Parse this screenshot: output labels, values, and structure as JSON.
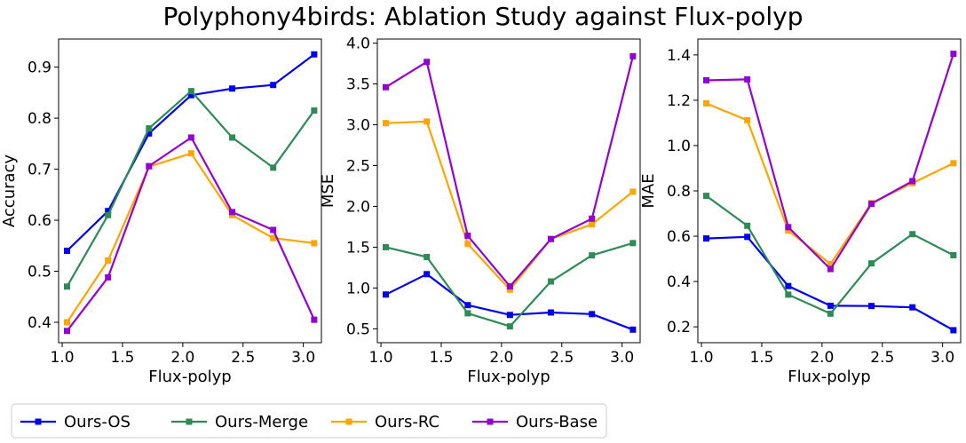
{
  "title": "Polyphony4birds: Ablation Study against Flux-polyp",
  "colors": {
    "Ours-OS": "#0000ee",
    "Ours-Merge": "#2e8b57",
    "Ours-RC": "#ffa500",
    "Ours-Base": "#9400d3"
  },
  "legend": {
    "placement": "bottom",
    "entries": [
      "Ours-OS",
      "Ours-Merge",
      "Ours-RC",
      "Ours-Base"
    ]
  },
  "chart_data": [
    {
      "type": "line",
      "xlabel": "Flux-polyp",
      "ylabel": "Accuracy",
      "xlim": [
        0.97,
        3.15
      ],
      "ylim": [
        0.36,
        0.955
      ],
      "xticks": [
        "1.0",
        "1.5",
        "2.0",
        "2.5",
        "3.0"
      ],
      "yticks": [
        "0.4",
        "0.5",
        "0.6",
        "0.7",
        "0.8",
        "0.9"
      ],
      "x": [
        1.04,
        1.38,
        1.72,
        2.07,
        2.41,
        2.75,
        3.09
      ],
      "series": [
        {
          "name": "Ours-OS",
          "values": [
            0.54,
            0.618,
            0.77,
            0.845,
            0.858,
            0.865,
            0.925
          ]
        },
        {
          "name": "Ours-Merge",
          "values": [
            0.47,
            0.61,
            0.78,
            0.853,
            0.762,
            0.703,
            0.815
          ]
        },
        {
          "name": "Ours-RC",
          "values": [
            0.4,
            0.521,
            0.705,
            0.731,
            0.61,
            0.565,
            0.555
          ]
        },
        {
          "name": "Ours-Base",
          "values": [
            0.383,
            0.488,
            0.706,
            0.762,
            0.616,
            0.581,
            0.405
          ]
        }
      ]
    },
    {
      "type": "line",
      "xlabel": "Flux-polyp",
      "ylabel": "MSE",
      "xlim": [
        0.97,
        3.15
      ],
      "ylim": [
        0.33,
        4.05
      ],
      "xticks": [
        "1.0",
        "1.5",
        "2.0",
        "2.5",
        "3.0"
      ],
      "yticks": [
        "0.5",
        "1.0",
        "1.5",
        "2.0",
        "2.5",
        "3.0",
        "3.5",
        "4.0"
      ],
      "x": [
        1.04,
        1.38,
        1.72,
        2.07,
        2.41,
        2.75,
        3.09
      ],
      "series": [
        {
          "name": "Ours-OS",
          "values": [
            0.92,
            1.17,
            0.79,
            0.67,
            0.7,
            0.68,
            0.49
          ]
        },
        {
          "name": "Ours-Merge",
          "values": [
            1.5,
            1.38,
            0.69,
            0.53,
            1.08,
            1.4,
            1.55
          ]
        },
        {
          "name": "Ours-RC",
          "values": [
            3.02,
            3.04,
            1.54,
            0.98,
            1.6,
            1.78,
            2.18
          ]
        },
        {
          "name": "Ours-Base",
          "values": [
            3.46,
            3.77,
            1.64,
            1.02,
            1.6,
            1.85,
            3.84
          ]
        }
      ]
    },
    {
      "type": "line",
      "xlabel": "Flux-polyp",
      "ylabel": "MAE",
      "xlim": [
        0.97,
        3.15
      ],
      "ylim": [
        0.13,
        1.47
      ],
      "xticks": [
        "1.0",
        "1.5",
        "2.0",
        "2.5",
        "3.0"
      ],
      "yticks": [
        "0.2",
        "0.4",
        "0.6",
        "0.8",
        "1.0",
        "1.2",
        "1.4"
      ],
      "x": [
        1.04,
        1.38,
        1.72,
        2.07,
        2.41,
        2.75,
        3.09
      ],
      "series": [
        {
          "name": "Ours-OS",
          "values": [
            0.59,
            0.597,
            0.38,
            0.293,
            0.292,
            0.286,
            0.185
          ]
        },
        {
          "name": "Ours-Merge",
          "values": [
            0.778,
            0.646,
            0.342,
            0.258,
            0.48,
            0.609,
            0.516
          ]
        },
        {
          "name": "Ours-RC",
          "values": [
            1.186,
            1.112,
            0.625,
            0.477,
            0.746,
            0.834,
            0.922
          ]
        },
        {
          "name": "Ours-Base",
          "values": [
            1.288,
            1.292,
            0.64,
            0.455,
            0.743,
            0.843,
            1.405
          ]
        }
      ]
    }
  ]
}
